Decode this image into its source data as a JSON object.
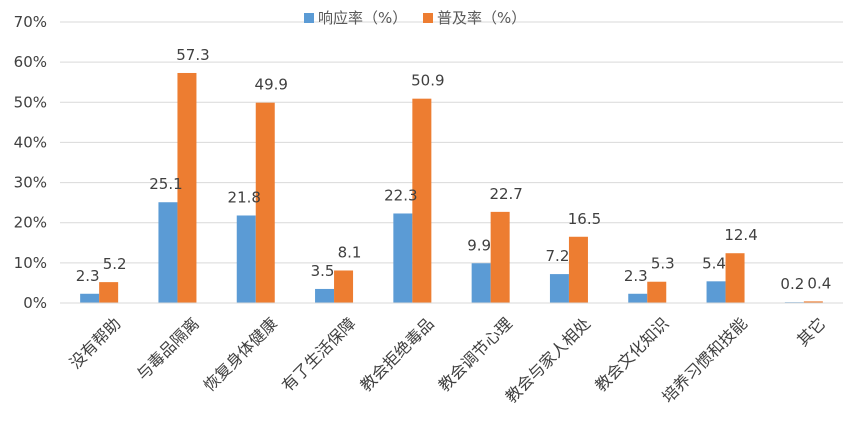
{
  "chart_data": {
    "type": "bar",
    "categories": [
      "没有帮助",
      "与毒品隔离",
      "恢复身体健康",
      "有了生活保障",
      "教会拒绝毒品",
      "教会调节心理",
      "教会与家人相处",
      "教会文化知识",
      "培养习惯和技能",
      "其它"
    ],
    "series": [
      {
        "name": "响应率（%）",
        "values": [
          2.3,
          25.1,
          21.8,
          3.5,
          22.3,
          9.9,
          7.2,
          2.3,
          5.4,
          0.2
        ],
        "labels": [
          "2.3",
          "25.1",
          "21.8",
          "3.5",
          "22.3",
          "9.9",
          "7.2",
          "2.3",
          "5.4",
          "0.2"
        ],
        "color": "#5B9BD5"
      },
      {
        "name": "普及率（%）",
        "values": [
          5.2,
          57.3,
          49.9,
          8.1,
          50.9,
          22.7,
          16.5,
          5.3,
          12.4,
          0.4
        ],
        "labels": [
          "5.2",
          "57.3",
          "49.9",
          "8.1",
          "50.9",
          "22.7",
          "16.5",
          "5.3",
          "12.4",
          "0.4"
        ],
        "color": "#ED7D31"
      }
    ],
    "yticks": [
      "0%",
      "10%",
      "20%",
      "30%",
      "40%",
      "50%",
      "60%",
      "70%"
    ],
    "ylim": [
      0,
      70
    ],
    "grid": true,
    "legend": "top-center"
  }
}
